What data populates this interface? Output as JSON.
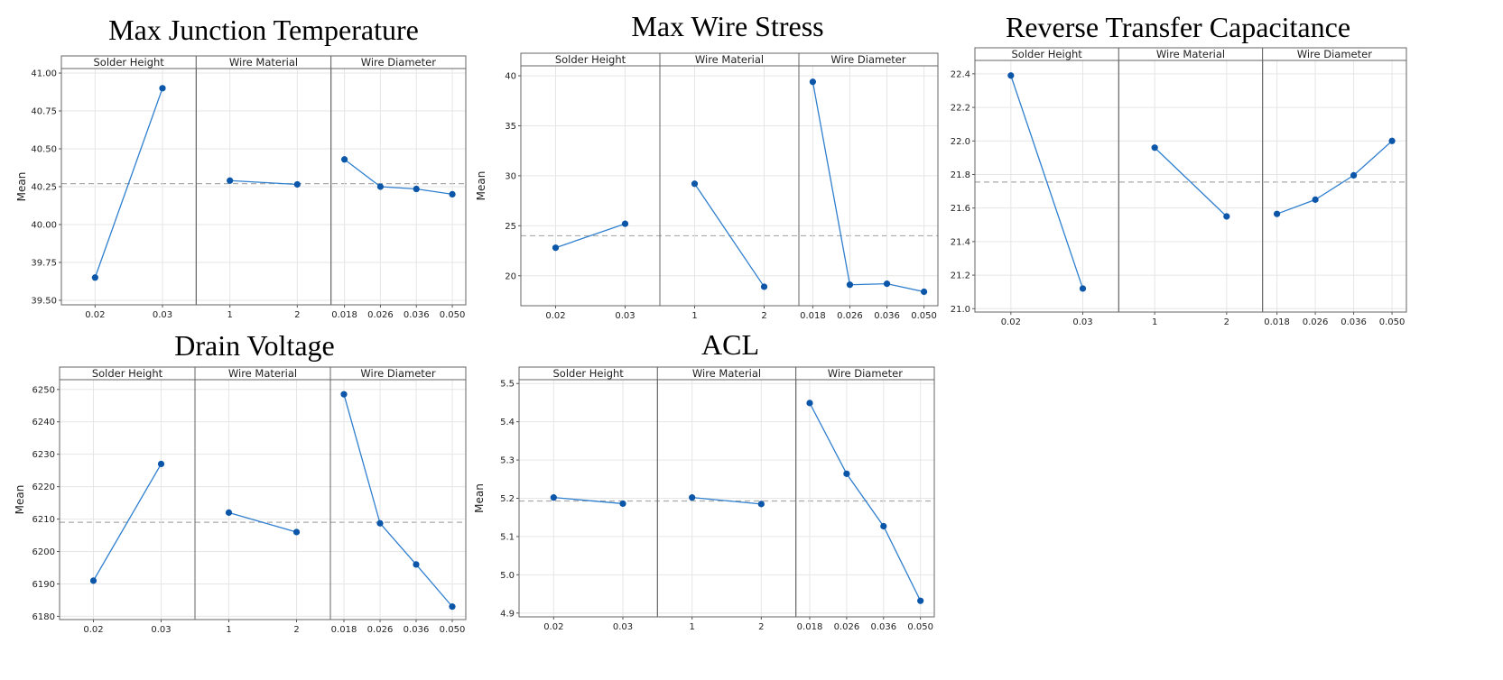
{
  "chart_data": [
    {
      "type": "line",
      "title": "Max Junction Temperature",
      "ylabel": "Mean",
      "ylim": [
        39.47,
        41.03
      ],
      "yticks": [
        "39.50",
        "39.75",
        "40.00",
        "40.25",
        "40.50",
        "40.75",
        "41.00"
      ],
      "mean_line": 40.27,
      "panels": [
        {
          "name": "Solder Height",
          "categories": [
            "0.02",
            "0.03"
          ],
          "values": [
            39.65,
            40.9
          ]
        },
        {
          "name": "Wire Material",
          "categories": [
            "1",
            "2"
          ],
          "values": [
            40.29,
            40.265
          ]
        },
        {
          "name": "Wire Diameter",
          "categories": [
            "0.018",
            "0.026",
            "0.036",
            "0.050"
          ],
          "values": [
            40.43,
            40.25,
            40.235,
            40.2
          ]
        }
      ]
    },
    {
      "type": "line",
      "title": "Max Wire Stress",
      "ylabel": "Mean",
      "ylim": [
        17.0,
        41.0
      ],
      "yticks": [
        "20",
        "25",
        "30",
        "35",
        "40"
      ],
      "mean_line": 24.0,
      "panels": [
        {
          "name": "Solder Height",
          "categories": [
            "0.02",
            "0.03"
          ],
          "values": [
            22.8,
            25.2
          ]
        },
        {
          "name": "Wire Material",
          "categories": [
            "1",
            "2"
          ],
          "values": [
            29.2,
            18.9
          ]
        },
        {
          "name": "Wire Diameter",
          "categories": [
            "0.018",
            "0.026",
            "0.036",
            "0.050"
          ],
          "values": [
            39.4,
            19.1,
            19.2,
            18.4
          ]
        }
      ]
    },
    {
      "type": "line",
      "title": "Reverse Transfer Capacitance",
      "ylabel": "",
      "ylim": [
        20.98,
        22.48
      ],
      "yticks": [
        "21.0",
        "21.2",
        "21.4",
        "21.6",
        "21.8",
        "22.0",
        "22.2",
        "22.4"
      ],
      "mean_line": 21.755,
      "panels": [
        {
          "name": "Solder Height",
          "categories": [
            "0.02",
            "0.03"
          ],
          "values": [
            22.39,
            21.12
          ]
        },
        {
          "name": "Wire Material",
          "categories": [
            "1",
            "2"
          ],
          "values": [
            21.96,
            21.55
          ]
        },
        {
          "name": "Wire Diameter",
          "categories": [
            "0.018",
            "0.026",
            "0.036",
            "0.050"
          ],
          "values": [
            21.565,
            21.65,
            21.795,
            22.0
          ]
        }
      ]
    },
    {
      "type": "line",
      "title": "Drain Voltage",
      "ylabel": "Mean",
      "ylim": [
        6179,
        6253
      ],
      "yticks": [
        "6180",
        "6190",
        "6200",
        "6210",
        "6220",
        "6230",
        "6240",
        "6250"
      ],
      "mean_line": 6209,
      "panels": [
        {
          "name": "Solder Height",
          "categories": [
            "0.02",
            "0.03"
          ],
          "values": [
            6191,
            6227
          ]
        },
        {
          "name": "Wire Material",
          "categories": [
            "1",
            "2"
          ],
          "values": [
            6212,
            6206
          ]
        },
        {
          "name": "Wire Diameter",
          "categories": [
            "0.018",
            "0.026",
            "0.036",
            "0.050"
          ],
          "values": [
            6248.5,
            6208.7,
            6196,
            6183
          ]
        }
      ]
    },
    {
      "type": "line",
      "title": "ACL",
      "ylabel": "Mean",
      "ylim": [
        4.89,
        5.51
      ],
      "yticks": [
        "4.9",
        "5.0",
        "5.1",
        "5.2",
        "5.3",
        "5.4",
        "5.5"
      ],
      "mean_line": 5.193,
      "panels": [
        {
          "name": "Solder Height",
          "categories": [
            "0.02",
            "0.03"
          ],
          "values": [
            5.202,
            5.186
          ]
        },
        {
          "name": "Wire Material",
          "categories": [
            "1",
            "2"
          ],
          "values": [
            5.202,
            5.185
          ]
        },
        {
          "name": "Wire Diameter",
          "categories": [
            "0.018",
            "0.026",
            "0.036",
            "0.050"
          ],
          "values": [
            5.449,
            5.264,
            5.127,
            4.932
          ]
        }
      ]
    }
  ],
  "colors": {
    "line": "#2f7fcf",
    "point": "#0b56a8",
    "mean": "#aaaaaa",
    "grid": "#e6e6e6",
    "frame": "#666666",
    "strip_bg": "#ffffff"
  }
}
